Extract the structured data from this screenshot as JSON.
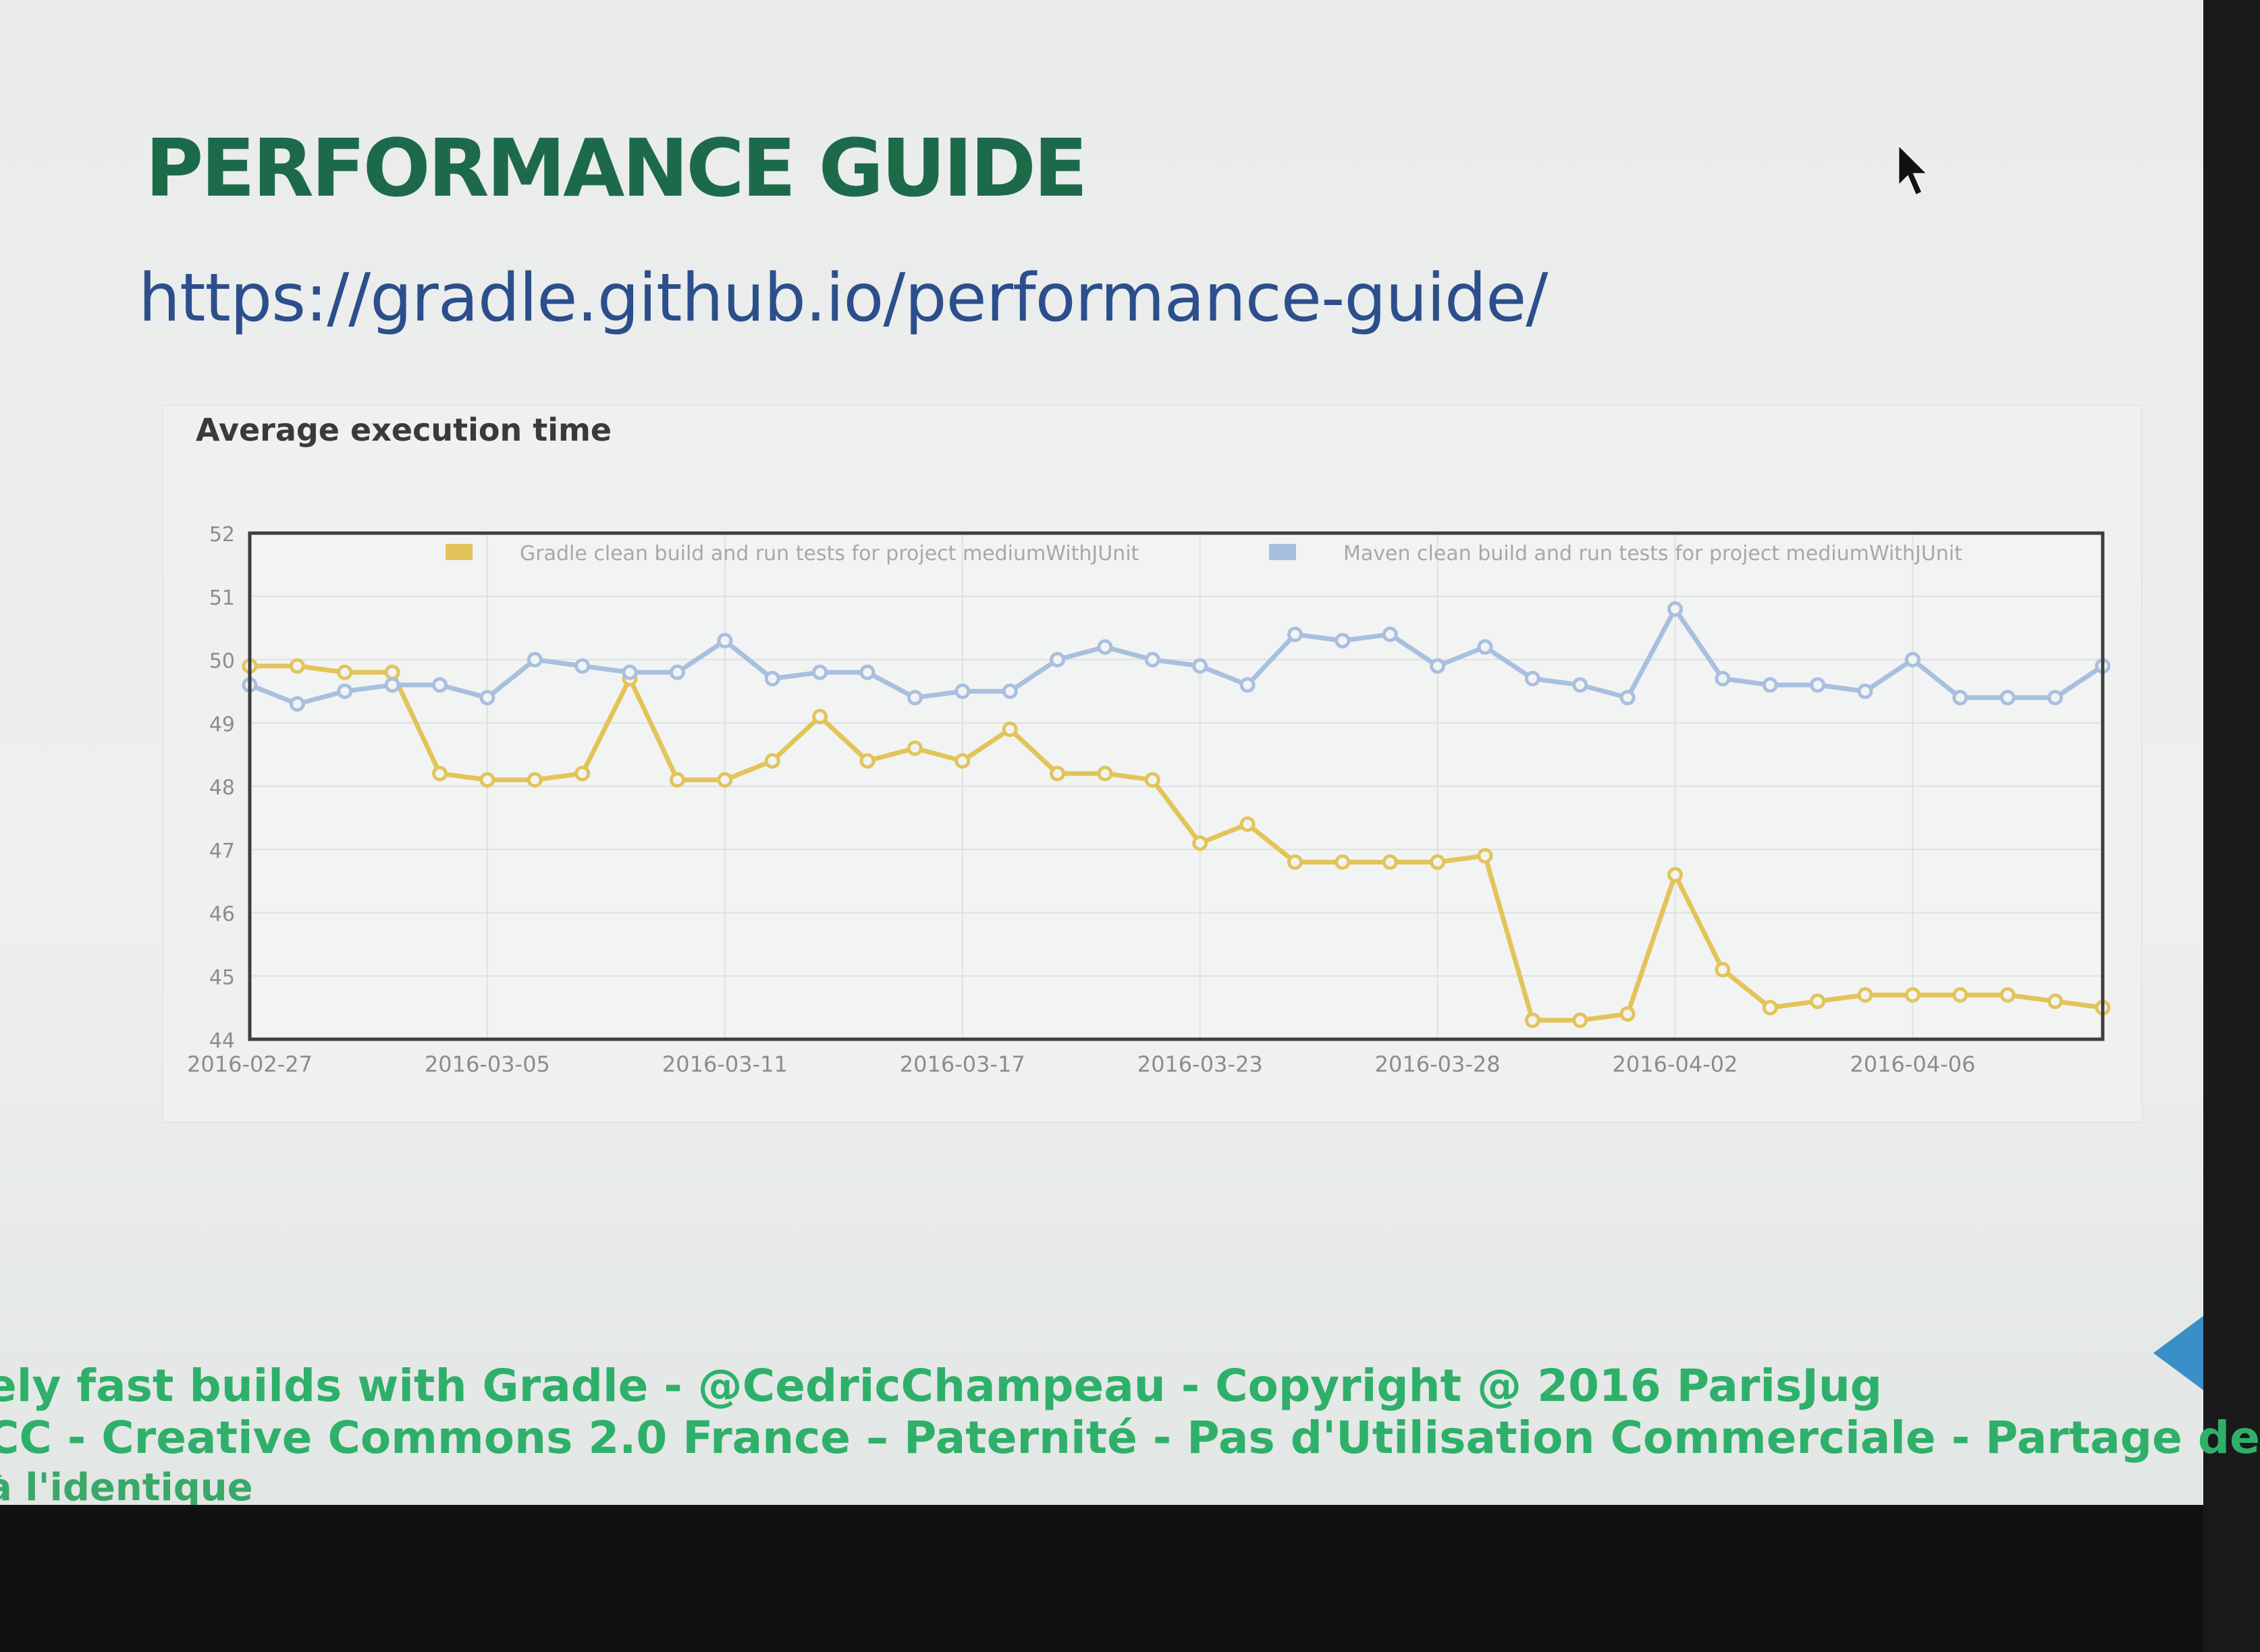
{
  "slide": {
    "title": "PERFORMANCE GUIDE",
    "link": "https://gradle.github.io/performance-guide/"
  },
  "footer": {
    "line1": "ely fast builds with Gradle - @CedricChampeau - Copyright @ 2016 ParisJug",
    "line2": "CC - Creative Commons 2.0 France – Paternité - Pas d'Utilisation Commerciale - Partage de",
    "line3": "à l'identique"
  },
  "colors": {
    "title": "#1d6a4a",
    "link": "#2c4f8c",
    "footer": "#2fb06a",
    "gradle": "#e2c45a",
    "maven": "#a9bfe0"
  },
  "icons": {
    "cursor": "mouse-pointer-icon",
    "nav": "next-slide-arrow-icon"
  },
  "chart_data": {
    "type": "line",
    "title": "Average execution time",
    "xlabel": "",
    "ylabel": "",
    "ylim": [
      44,
      52
    ],
    "yticks": [
      44,
      45,
      46,
      47,
      48,
      49,
      50,
      51,
      52
    ],
    "ytick_labels": [
      "44",
      "45",
      "46",
      "47",
      "48",
      "49",
      "50",
      "51",
      "52"
    ],
    "x_tick_labels": [
      "2016-02-27",
      "2016-03-05",
      "2016-03-11",
      "2016-03-17",
      "2016-03-23",
      "2016-03-28",
      "2016-04-02",
      "2016-04-06"
    ],
    "x_tick_index": [
      0,
      5,
      10,
      15,
      20,
      25,
      30,
      35
    ],
    "point_count": 40,
    "grid": true,
    "legend_position": "top",
    "series": [
      {
        "name": "Gradle clean build and run tests for project mediumWithJUnit",
        "color": "#e2c45a",
        "values": [
          49.9,
          49.9,
          49.8,
          49.8,
          48.2,
          48.1,
          48.1,
          48.2,
          49.7,
          48.1,
          48.1,
          48.4,
          49.1,
          48.4,
          48.6,
          48.4,
          48.9,
          48.2,
          48.2,
          48.1,
          47.1,
          47.4,
          46.8,
          46.8,
          46.8,
          46.8,
          46.9,
          44.3,
          44.3,
          44.4,
          46.6,
          45.1,
          44.5,
          44.6,
          44.7,
          44.7,
          44.7,
          44.7,
          44.6,
          44.5
        ]
      },
      {
        "name": "Maven clean build and run tests for project mediumWithJUnit",
        "color": "#a9bfe0",
        "values": [
          49.6,
          49.3,
          49.5,
          49.6,
          49.6,
          49.4,
          50.0,
          49.9,
          49.8,
          49.8,
          50.3,
          49.7,
          49.8,
          49.8,
          49.4,
          49.5,
          49.5,
          50.0,
          50.2,
          50.0,
          49.9,
          49.6,
          50.4,
          50.3,
          50.4,
          49.9,
          50.2,
          49.7,
          49.6,
          49.4,
          50.8,
          49.7,
          49.6,
          49.6,
          49.5,
          50.0,
          49.4,
          49.4,
          49.4,
          49.9
        ]
      }
    ]
  }
}
